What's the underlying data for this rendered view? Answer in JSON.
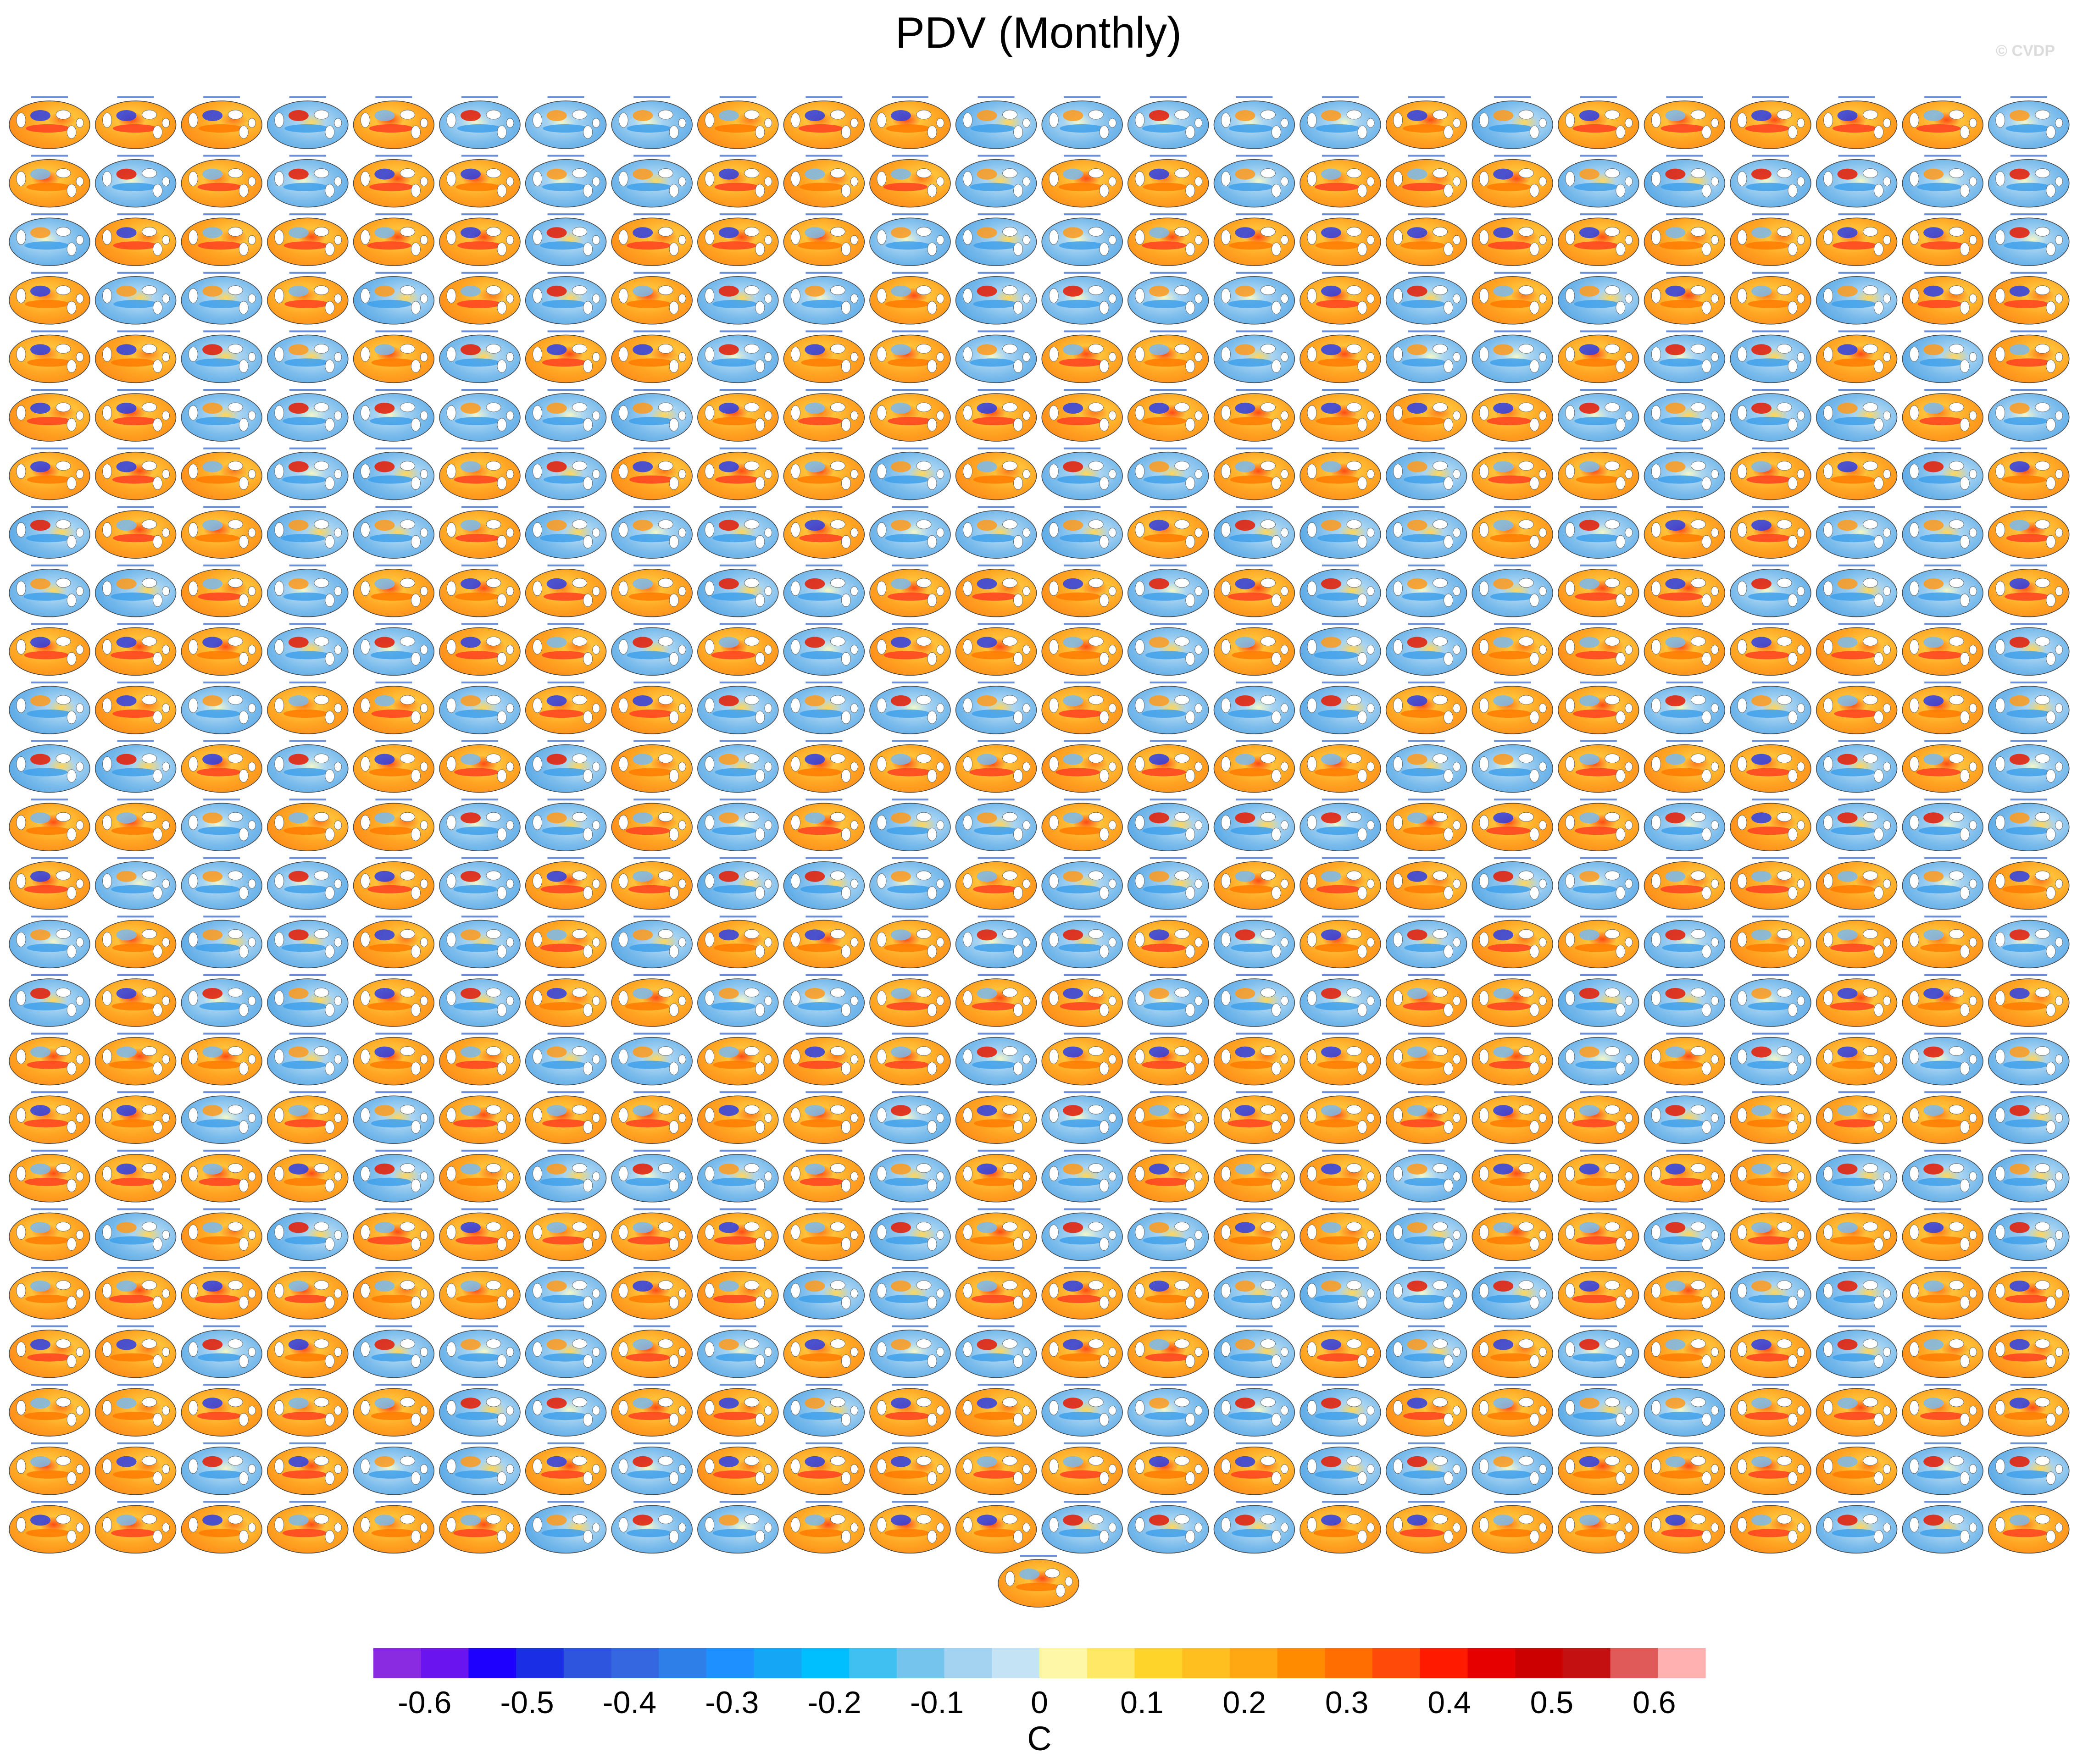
{
  "title": "PDV (Monthly)",
  "watermark": "© CVDP",
  "chart_data": {
    "type": "heatmap",
    "title": "PDV (Monthly)",
    "panel_grid": {
      "rows": 25,
      "columns": 24,
      "extra_panels_centered_below": 1
    },
    "colorbar": {
      "unit": "C",
      "tick_labels": [
        "-0.6",
        "-0.5",
        "-0.4",
        "-0.3",
        "-0.2",
        "-0.1",
        "0",
        "0.1",
        "0.2",
        "0.3",
        "0.4",
        "0.5",
        "0.6"
      ],
      "bin_edges": [
        -0.65,
        -0.6,
        -0.55,
        -0.5,
        -0.45,
        -0.4,
        -0.35,
        -0.3,
        -0.25,
        -0.2,
        -0.15,
        -0.1,
        -0.05,
        0,
        0.05,
        0.1,
        0.15,
        0.2,
        0.25,
        0.3,
        0.35,
        0.4,
        0.45,
        0.5,
        0.55,
        0.6,
        0.65
      ],
      "colors": [
        "#8a2be2",
        "#6a14f0",
        "#1e00ff",
        "#1a2ee6",
        "#2e55de",
        "#3568e0",
        "#2f7fe8",
        "#1e90ff",
        "#16a6f6",
        "#00bfff",
        "#3fc0f0",
        "#74c4ee",
        "#a3d3f0",
        "#c4e4f6",
        "#fff7a8",
        "#ffe866",
        "#ffd42a",
        "#ffbf1f",
        "#ffa812",
        "#ff8c00",
        "#ff6e00",
        "#ff4a0a",
        "#ff1a00",
        "#e60000",
        "#cc0000",
        "#c41010",
        "#e05a5a",
        "#ffb0b0"
      ]
    }
  }
}
